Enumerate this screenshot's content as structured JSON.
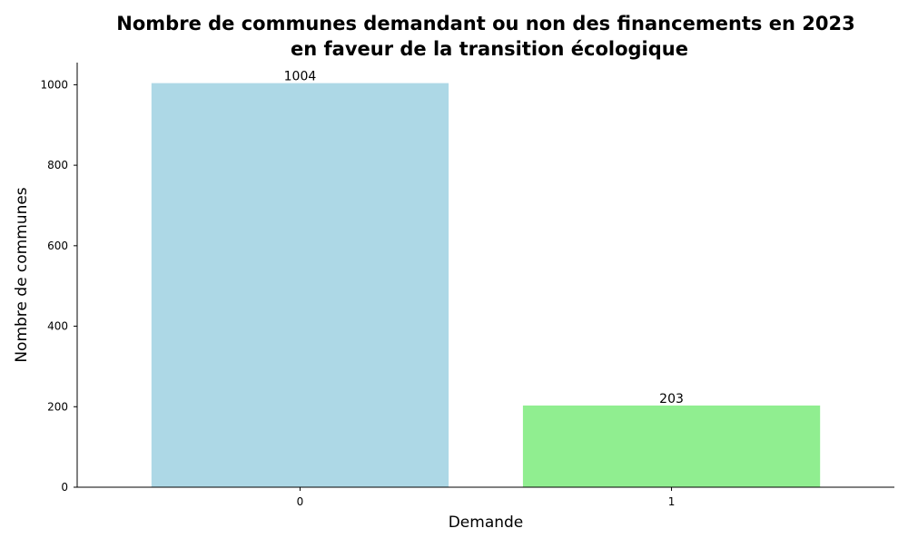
{
  "chart_data": {
    "type": "bar",
    "title_lines": [
      "Nombre de communes demandant ou non des financements en 2023",
      "en faveur de la transition écologique"
    ],
    "xlabel": "Demande",
    "ylabel": "Nombre de communes",
    "categories": [
      "0",
      "1"
    ],
    "values": [
      1004,
      203
    ],
    "data_labels": [
      "1004",
      "203"
    ],
    "bar_colors": [
      "#add8e6",
      "#90ee90"
    ],
    "ylim": [
      0,
      1055
    ],
    "yticks": [
      0,
      200,
      400,
      600,
      800,
      1000
    ],
    "grid": false,
    "legend": "none"
  }
}
